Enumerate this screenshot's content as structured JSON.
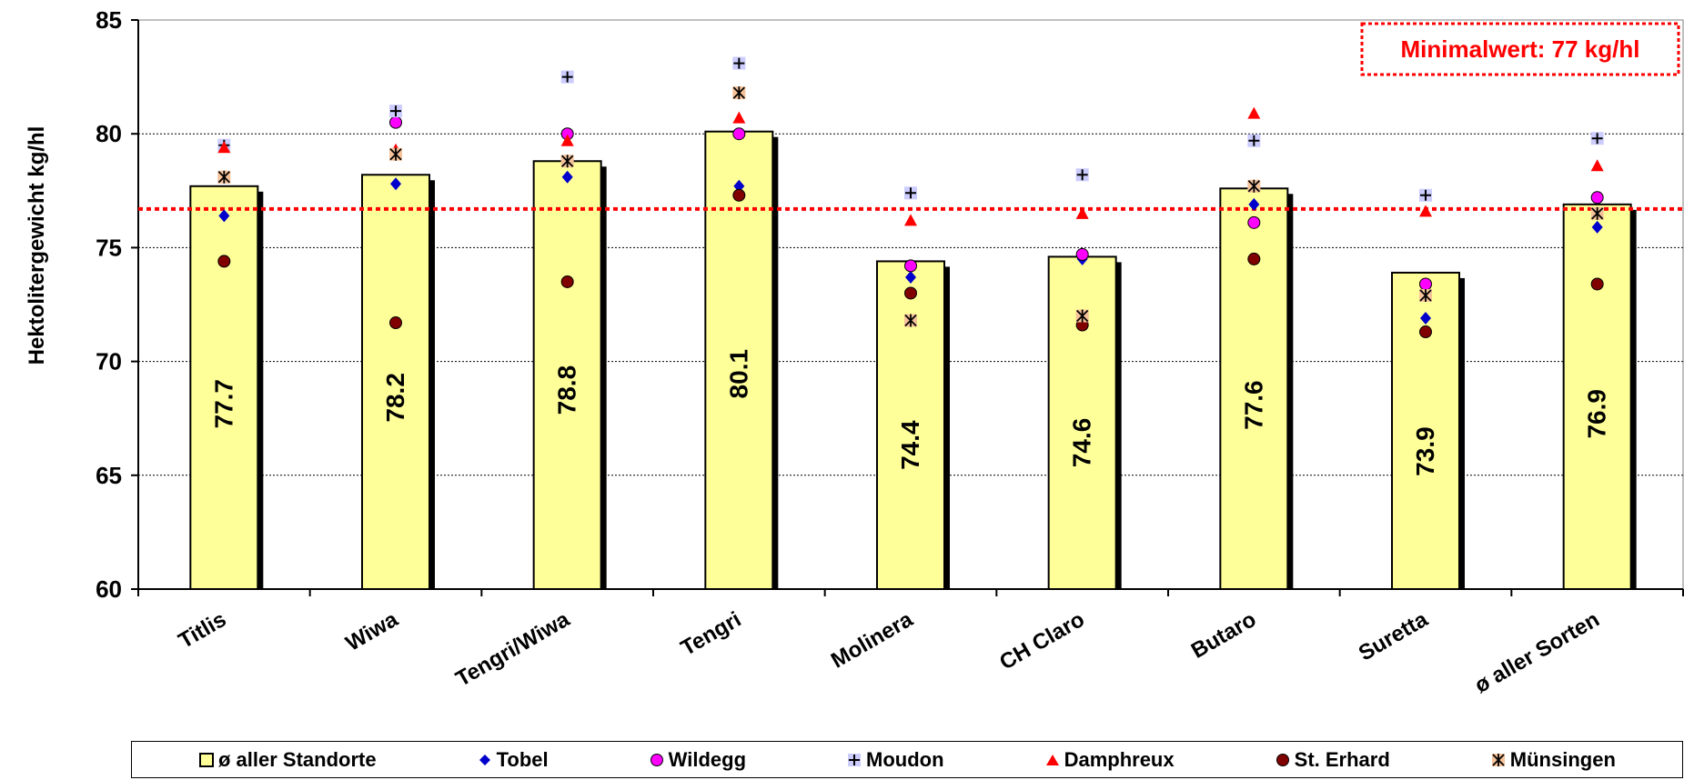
{
  "chart_data": {
    "type": "bar",
    "ylabel": "Hektolitergewicht kg/hl",
    "xlabel": "",
    "ylim": [
      60,
      85
    ],
    "yticks": [
      60,
      65,
      70,
      75,
      80,
      85
    ],
    "grid": true,
    "legend_position": "bottom",
    "categories": [
      "Titlis",
      "Wiwa",
      "Tengri/Wiwa",
      "Tengri",
      "Molinera",
      "CH Claro",
      "Butaro",
      "Suretta",
      "ø aller Sorten"
    ],
    "bar_series": {
      "name": "ø aller Standorte",
      "values": [
        77.7,
        78.2,
        78.8,
        80.1,
        74.4,
        74.6,
        77.6,
        73.9,
        76.9
      ],
      "labels": [
        "77.7",
        "78.2",
        "78.8",
        "80.1",
        "74.4",
        "74.6",
        "77.6",
        "73.9",
        "76.9"
      ],
      "color": "#FFFF99"
    },
    "series": [
      {
        "name": "Tobel",
        "marker": "diamond",
        "color": "#0000CC",
        "values": [
          76.4,
          77.8,
          78.1,
          77.7,
          73.7,
          74.5,
          76.9,
          71.9,
          75.9
        ]
      },
      {
        "name": "Wildegg",
        "marker": "circle",
        "color": "#FF00FF",
        "values": [
          null,
          80.5,
          80.0,
          80.0,
          74.2,
          74.7,
          76.1,
          73.4,
          77.2
        ]
      },
      {
        "name": "Moudon",
        "marker": "plus",
        "color": "#CCCCFF",
        "values": [
          79.5,
          81.0,
          82.5,
          83.1,
          77.4,
          78.2,
          79.7,
          77.3,
          79.8
        ]
      },
      {
        "name": "Damphreux",
        "marker": "triangle",
        "color": "#FF0000",
        "values": [
          79.4,
          79.3,
          79.7,
          80.7,
          76.2,
          76.5,
          80.9,
          76.6,
          78.6
        ]
      },
      {
        "name": "St. Erhard",
        "marker": "circle",
        "color": "#800000",
        "values": [
          74.4,
          71.7,
          73.5,
          77.3,
          73.0,
          71.6,
          74.5,
          71.3,
          73.4
        ]
      },
      {
        "name": "Münsingen",
        "marker": "asterisk",
        "color": "#F5C29A",
        "values": [
          78.1,
          79.1,
          78.8,
          81.8,
          71.8,
          72.0,
          77.7,
          72.9,
          76.5
        ]
      }
    ],
    "reference_line": {
      "value": 76.7,
      "color": "#FF0000",
      "style": "dotted",
      "label": "Minimalwert: 77 kg/hl"
    }
  }
}
